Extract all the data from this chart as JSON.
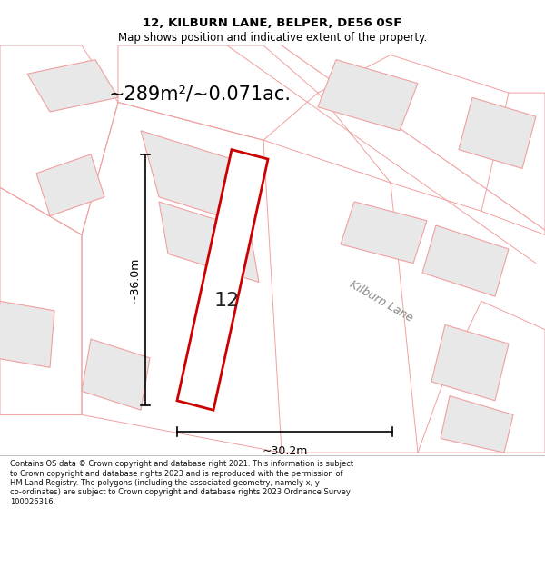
{
  "title": "12, KILBURN LANE, BELPER, DE56 0SF",
  "subtitle": "Map shows position and indicative extent of the property.",
  "area_text": "~289m²/~0.071ac.",
  "property_label": "12",
  "road_label": "Kilburn Lane",
  "dim_height": "~36.0m",
  "dim_width": "~30.2m",
  "footer": "Contains OS data © Crown copyright and database right 2021. This information is subject\nto Crown copyright and database rights 2023 and is reproduced with the permission of\nHM Land Registry. The polygons (including the associated geometry, namely x, y\nco-ordinates) are subject to Crown copyright and database rights 2023 Ordnance Survey\n100026316.",
  "bg_color": "#ffffff",
  "map_bg": "#ffffff",
  "property_color": "#cc0000",
  "building_fill": "#e8e8e8",
  "building_edge": "#f0a0a0",
  "plot_line_color": "#f0a0a0"
}
